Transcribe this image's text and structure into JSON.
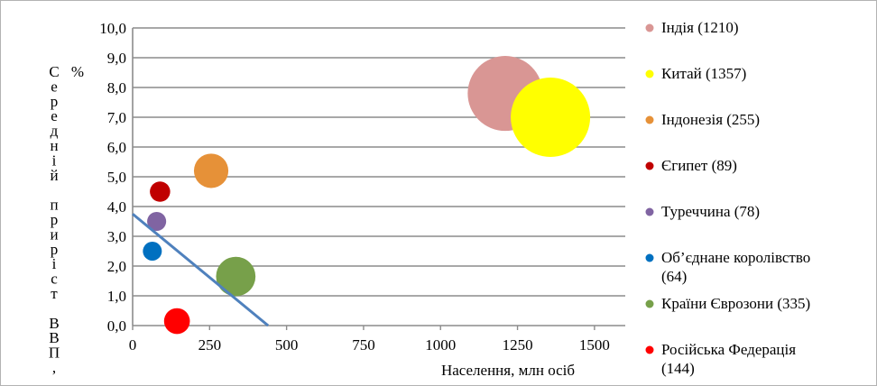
{
  "chart_data": {
    "type": "bubble",
    "xlabel": "Населення, млн осіб",
    "ylabel_lines": [
      "Середній приріст ВВП,",
      "%"
    ],
    "xlim": [
      0,
      1600
    ],
    "ylim": [
      0,
      10
    ],
    "x_ticks": [
      "0",
      "250",
      "500",
      "750",
      "1000",
      "1250",
      "1500"
    ],
    "y_ticks": [
      "0,0",
      "1,0",
      "2,0",
      "3,0",
      "4,0",
      "5,0",
      "6,0",
      "7,0",
      "8,0",
      "9,0",
      "10,0"
    ],
    "grid": "horizontal",
    "legend_position": "right",
    "series": [
      {
        "name": "Індія (1210)",
        "x": 1210,
        "y": 7.8,
        "size": 1210,
        "color": "#d99694"
      },
      {
        "name": "Китай (1357)",
        "x": 1357,
        "y": 7.0,
        "size": 1357,
        "color": "#ffff00"
      },
      {
        "name": "Індонезія (255)",
        "x": 255,
        "y": 5.2,
        "size": 255,
        "color": "#e69138"
      },
      {
        "name": "Єгипет (89)",
        "x": 89,
        "y": 4.5,
        "size": 89,
        "color": "#c00000"
      },
      {
        "name": "Туреччина (78)",
        "x": 78,
        "y": 3.5,
        "size": 78,
        "color": "#8064a2"
      },
      {
        "name": "Об’єднане королівство (64)",
        "x": 64,
        "y": 2.5,
        "size": 64,
        "color": "#0070c0"
      },
      {
        "name": "Країни Єврозони (335)",
        "x": 335,
        "y": 1.65,
        "size": 335,
        "color": "#77a04a"
      },
      {
        "name": "Російська Федерація (144)",
        "x": 144,
        "y": 0.15,
        "size": 144,
        "color": "#ff0000"
      }
    ],
    "trendline": {
      "x": [
        0,
        440
      ],
      "y": [
        3.75,
        0
      ],
      "color": "#4f81bd"
    }
  }
}
